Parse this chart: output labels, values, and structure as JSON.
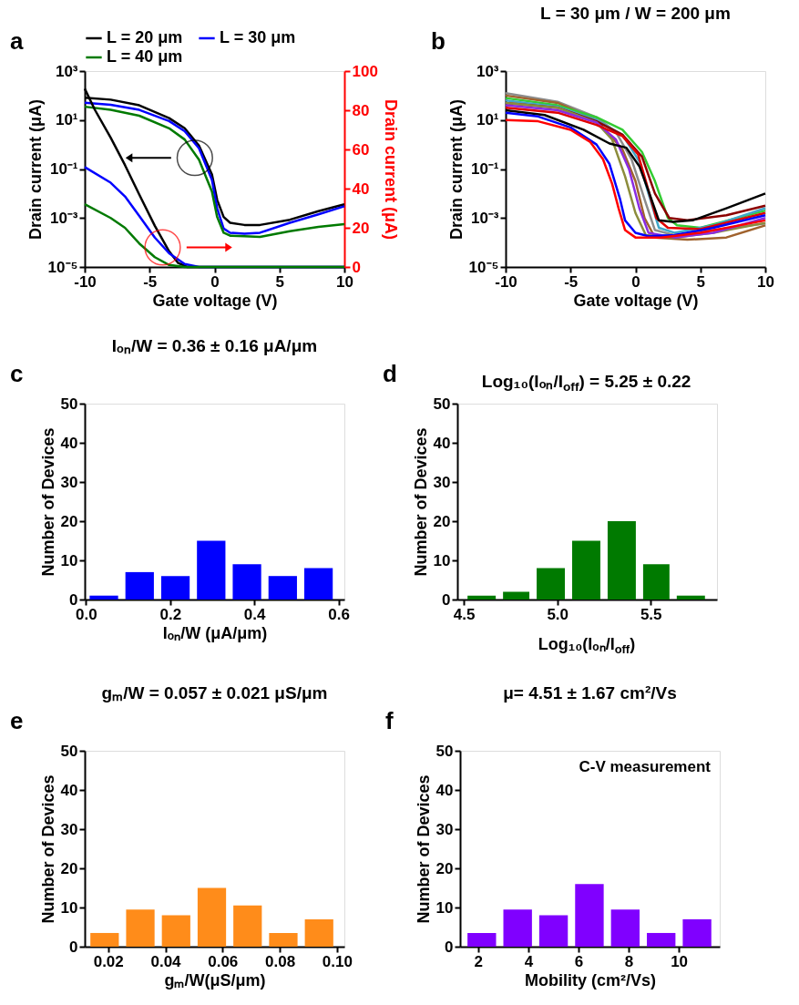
{
  "chart_data": [
    {
      "type": "line",
      "xlabel": "Gate voltage (V)",
      "ylabel": "Drain current (μA)",
      "y2label": "Drain current (μA)",
      "annotations": [
        "a"
      ],
      "log": "y",
      "xlim": [
        -10,
        10
      ],
      "xticks": [
        -10,
        -5,
        0,
        5,
        10
      ],
      "ylim": [
        1e-05,
        1000
      ],
      "yticks": [
        {
          "value": 1e-05,
          "label": "10⁻⁵"
        },
        {
          "value": 0.001,
          "label": "10⁻³"
        },
        {
          "value": 0.1,
          "label": "10⁻¹"
        },
        {
          "value": 10,
          "label": "10¹"
        },
        {
          "value": 1000,
          "label": "10³"
        }
      ],
      "y2lim": [
        0,
        100
      ],
      "y2ticks": [
        0,
        20,
        40,
        60,
        80,
        100
      ],
      "legend": "top",
      "line_style": "solid",
      "series": [
        {
          "name": "L = 20 μm",
          "color": "#000000",
          "x": [
            -10,
            -8,
            -5.8,
            -3.5,
            -2.3,
            -1.2,
            -0.2,
            0.2,
            0.7,
            1.2,
            2.3,
            3.5,
            5.8,
            8,
            10
          ],
          "values": [
            81,
            68,
            40,
            12,
            4.6,
            0.9,
            0.06,
            0.0055,
            0.0011,
            0.00064,
            0.00052,
            0.00052,
            0.00085,
            0.0019,
            0.0036
          ]
        },
        {
          "name": "L = 30 μm",
          "color": "#0000ff",
          "x": [
            -10,
            -8,
            -5.8,
            -3.5,
            -2.3,
            -1.2,
            -0.2,
            0.2,
            0.7,
            1.2,
            2.3,
            3.5,
            5.8,
            8,
            10
          ],
          "values": [
            51,
            42,
            26,
            9.1,
            3.5,
            0.7,
            0.036,
            0.0025,
            0.00037,
            0.00025,
            0.00023,
            0.00025,
            0.00064,
            0.0014,
            0.003
          ]
        },
        {
          "name": "L = 40 μm",
          "color": "#007a00",
          "x": [
            -10,
            -8,
            -5.8,
            -3.5,
            -2.3,
            -1.2,
            -0.2,
            0.2,
            0.7,
            1.2,
            2.3,
            3.5,
            5.8,
            8,
            10
          ],
          "values": [
            35,
            26,
            15,
            4.6,
            1.6,
            0.24,
            0.012,
            0.0011,
            0.00025,
            0.00019,
            0.00018,
            0.00017,
            0.00029,
            0.00043,
            0.00056
          ]
        },
        {
          "color": "#000000",
          "axis": "y2",
          "x": [
            -10,
            -9.2,
            -8,
            -6.9,
            -5.8,
            -4.6,
            -3.5,
            -2.8,
            -2.1,
            10
          ],
          "values": [
            91,
            80,
            66,
            52,
            37,
            21,
            8,
            2,
            0,
            0
          ]
        },
        {
          "color": "#0000ff",
          "axis": "y2",
          "x": [
            -10,
            -8,
            -6.9,
            -5.8,
            -4.6,
            -3.5,
            -2.3,
            -1.2,
            10
          ],
          "values": [
            51,
            43,
            36,
            26,
            15,
            7,
            1.5,
            0,
            0
          ]
        },
        {
          "color": "#007a00",
          "axis": "y2",
          "x": [
            -10,
            -8,
            -6.9,
            -5.8,
            -4.6,
            -3.5,
            -2.3,
            10
          ],
          "values": [
            32,
            25,
            20,
            12,
            5,
            1,
            0,
            0
          ]
        }
      ]
    },
    {
      "type": "line",
      "title": "L = 30 μm / W = 200 μm",
      "xlabel": "Gate voltage (V)",
      "ylabel": "Drain current (μA)",
      "annotations": [
        "b"
      ],
      "log": "y",
      "xlim": [
        -10,
        10
      ],
      "xticks": [
        -10,
        -5,
        0,
        5,
        10
      ],
      "ylim": [
        1e-05,
        1000
      ],
      "yticks": [
        {
          "value": 1e-05,
          "label": "10⁻⁵"
        },
        {
          "value": 0.001,
          "label": "10⁻³"
        },
        {
          "value": 0.1,
          "label": "10⁻¹"
        },
        {
          "value": 10,
          "label": "10¹"
        },
        {
          "value": 1000,
          "label": "10³"
        }
      ],
      "line_style": "solid",
      "series": [
        {
          "color": "#8c8c8c",
          "x": [
            -10,
            -6,
            -3,
            -1.5,
            -0.3,
            0.8,
            1.5,
            3,
            6,
            10
          ],
          "values": [
            126,
            56,
            13,
            3.2,
            0.25,
            0.004,
            0.00032,
            0.0002,
            0.00032,
            0.0006
          ]
        },
        {
          "color": "#a0622d",
          "x": [
            -10,
            -6,
            -3,
            -1,
            0,
            0.7,
            1.5,
            4,
            7,
            10
          ],
          "values": [
            100,
            50,
            10,
            0.63,
            0.032,
            0.001,
            0.00016,
            0.00013,
            0.00016,
            0.0005
          ]
        },
        {
          "color": "#33cc33",
          "x": [
            -10,
            -6,
            -3,
            -1,
            0.5,
            1.5,
            2.5,
            3.2,
            5,
            10
          ],
          "values": [
            79,
            40,
            13,
            4,
            0.5,
            0.032,
            0.001,
            0.0005,
            0.0004,
            0.002
          ]
        },
        {
          "color": "#3fa7c9",
          "x": [
            -10,
            -6,
            -3,
            -1,
            0.3,
            1,
            1.8,
            3,
            6,
            10
          ],
          "values": [
            63,
            35,
            10,
            2.5,
            0.2,
            0.01,
            0.0004,
            0.00025,
            0.0005,
            0.0025
          ]
        },
        {
          "color": "#8b0000",
          "x": [
            -10,
            -6,
            -3,
            -1,
            0.5,
            1.5,
            2.6,
            4,
            7,
            10
          ],
          "values": [
            50,
            32,
            8.9,
            2.5,
            0.32,
            0.01,
            0.001,
            0.0008,
            0.0013,
            0.0032
          ]
        },
        {
          "color": "#8c8c3c",
          "x": [
            -10,
            -6,
            -3,
            -1.8,
            -0.8,
            0,
            0.8,
            3,
            6,
            10
          ],
          "values": [
            50,
            32,
            7.9,
            1.6,
            0.05,
            0.0016,
            0.0002,
            0.00016,
            0.00025,
            0.00063
          ]
        },
        {
          "color": "#8a2be2",
          "x": [
            -10,
            -6,
            -3,
            -1.5,
            -0.5,
            0.3,
            1,
            3,
            6,
            10
          ],
          "values": [
            40,
            25,
            7.9,
            1.6,
            0.1,
            0.0025,
            0.00025,
            0.00016,
            0.00025,
            0.001
          ]
        },
        {
          "color": "#e00000",
          "x": [
            -10,
            -6,
            -3,
            -1,
            0.2,
            0.8,
            1.6,
            2.5,
            5,
            10
          ],
          "values": [
            32,
            20,
            6.3,
            2.2,
            0.4,
            0.032,
            0.001,
            0.0004,
            0.00035,
            0.0016
          ]
        },
        {
          "color": "#000000",
          "x": [
            -10,
            -7,
            -4,
            -2,
            -0.7,
            0.3,
            1,
            1.8,
            2.9,
            4.4,
            7,
            10
          ],
          "values": [
            25,
            16,
            4,
            1.1,
            0.74,
            0.13,
            0.013,
            0.0008,
            0.0007,
            0.0008,
            0.0025,
            0.01
          ]
        },
        {
          "color": "#0000ff",
          "x": [
            -10,
            -7.5,
            -5,
            -3,
            -2,
            -1.2,
            -0.8,
            0,
            1,
            3,
            6,
            10
          ],
          "values": [
            20,
            14,
            5,
            1,
            0.16,
            0.0063,
            0.0008,
            0.00025,
            0.00018,
            0.0002,
            0.0004,
            0.0013
          ]
        },
        {
          "color": "#ff0000",
          "x": [
            -10,
            -7.5,
            -5,
            -3.5,
            -2.5,
            -1.8,
            -1.3,
            -0.8,
            0,
            2,
            5,
            10
          ],
          "values": [
            10,
            8.9,
            4,
            1.3,
            0.25,
            0.025,
            0.0025,
            0.00032,
            0.00016,
            0.00016,
            0.00025,
            0.0008
          ]
        }
      ]
    },
    {
      "type": "histogram",
      "title": "Iₒₙ/W = 0.36 ± 0.16 μA/μm",
      "xlabel": "Iₒₙ/W (μA/μm)",
      "ylabel": "Number of Devices",
      "annotations": [
        "c"
      ],
      "color": "#0000ff",
      "bins": [
        0,
        0.085,
        0.17,
        0.255,
        0.34,
        0.425,
        0.51,
        0.595
      ],
      "values": [
        1,
        7,
        6,
        15,
        9,
        6,
        8
      ],
      "xlim": [
        -0.003,
        0.614
      ],
      "xticks": [
        {
          "value": 0,
          "label": "0.0"
        },
        0.2,
        0.4,
        0.6
      ],
      "ylim": [
        0,
        50
      ],
      "yticks": [
        0,
        10,
        20,
        30,
        40,
        50
      ]
    },
    {
      "type": "histogram",
      "title": "Log₁₀(Iₒₙ/I$_{off}$) = 5.25 ± 0.22",
      "xlabel": "Log₁₀(Iₒₙ/I$_{off}$)",
      "ylabel": "Number of Devices",
      "annotations": [
        "d"
      ],
      "color": "#007a00",
      "bins": [
        4.5,
        4.69,
        4.87,
        5.06,
        5.25,
        5.44,
        5.62,
        5.81
      ],
      "values": [
        1,
        2,
        8,
        15,
        20,
        9,
        1
      ],
      "xlim": [
        4.465,
        5.855
      ],
      "xticks": [
        4.5,
        {
          "value": 5,
          "label": "5.0"
        },
        5.5
      ],
      "ylim": [
        0,
        50
      ],
      "yticks": [
        0,
        10,
        20,
        30,
        40,
        50
      ]
    },
    {
      "type": "histogram",
      "title": "gₘ/W = 0.057 ± 0.021 μS/μm",
      "xlabel": "gₘ/W(μS/μm)",
      "ylabel": "Number of Devices",
      "annotations": [
        "e"
      ],
      "color": "#ff8c1a",
      "bins": [
        0.0125,
        0.025,
        0.0375,
        0.05,
        0.0625,
        0.075,
        0.0875,
        0.1
      ],
      "values": [
        3.5,
        9.5,
        8,
        15,
        10.5,
        3.5,
        7
      ],
      "xlim": [
        0.0118,
        0.1026
      ],
      "xticks": [
        0.02,
        0.04,
        0.06,
        0.08,
        {
          "value": 0.1,
          "label": "0.10"
        }
      ],
      "ylim": [
        0,
        50
      ],
      "yticks": [
        0,
        10,
        20,
        30,
        40,
        50
      ]
    },
    {
      "type": "histogram",
      "title": "μ= 4.51 ± 1.67 cm²/Vs",
      "xlabel": "Mobility (cm²/Vs)",
      "ylabel": "Number of Devices",
      "annotations": [
        "f",
        "C-V measurement"
      ],
      "color": "#8000ff",
      "bins": [
        1.43,
        2.86,
        4.29,
        5.72,
        7.15,
        8.58,
        10.01,
        11.44
      ],
      "values": [
        3.5,
        9.5,
        8,
        16,
        9.5,
        3.5,
        7
      ],
      "xlim": [
        1.28,
        11.63
      ],
      "xticks": [
        2,
        4,
        6,
        8,
        10
      ],
      "ylim": [
        0,
        50
      ],
      "yticks": [
        0,
        10,
        20,
        30,
        40,
        50
      ]
    }
  ]
}
